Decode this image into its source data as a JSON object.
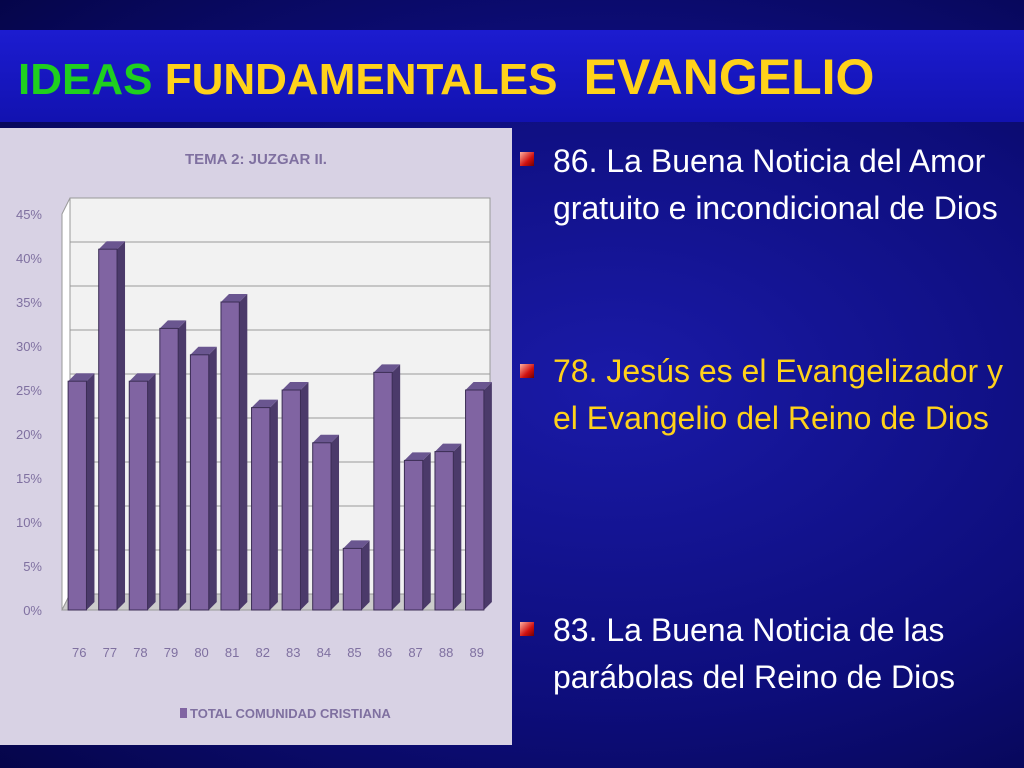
{
  "slide_title": {
    "part1": "IDEAS",
    "part2": "FUNDAMENTALES",
    "part3": "EVANGELIO"
  },
  "bullets": [
    "86.  La Buena Noticia del Amor gratuito e incondicional de Dios",
    "78.  Jesús es el Evangelizador y el Evangelio del Reino de Dios",
    "83.  La Buena Noticia de las parábolas  del Reino de Dios"
  ],
  "chart_data": {
    "type": "bar",
    "title": "TEMA 2: JUZGAR II.",
    "categories": [
      "76",
      "77",
      "78",
      "79",
      "80",
      "81",
      "82",
      "83",
      "84",
      "85",
      "86",
      "87",
      "88",
      "89"
    ],
    "series": [
      {
        "name": "TOTAL COMUNIDAD CRISTIANA",
        "color": "#8064a2",
        "values": [
          26,
          41,
          26,
          32,
          29,
          35,
          23,
          25,
          19,
          7,
          27,
          17,
          18,
          25
        ]
      }
    ],
    "ylim": [
      0,
      45
    ],
    "yticks": [
      {
        "value": 0,
        "label": "0%"
      },
      {
        "value": 5,
        "label": "5%"
      },
      {
        "value": 10,
        "label": "10%"
      },
      {
        "value": 15,
        "label": "15%"
      },
      {
        "value": 20,
        "label": "20%"
      },
      {
        "value": 25,
        "label": "25%"
      },
      {
        "value": 30,
        "label": "30%"
      },
      {
        "value": 35,
        "label": "35%"
      },
      {
        "value": 40,
        "label": "40%"
      },
      {
        "value": 45,
        "label": "45%"
      }
    ],
    "grid": true
  }
}
